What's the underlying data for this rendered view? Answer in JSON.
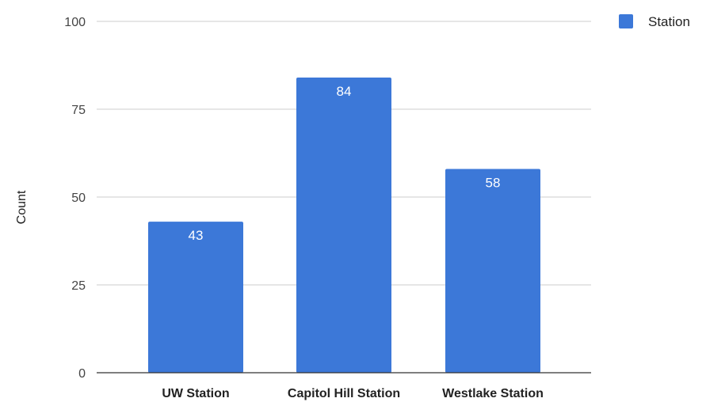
{
  "chart_data": {
    "type": "bar",
    "categories": [
      "UW Station",
      "Capitol Hill Station",
      "Westlake Station"
    ],
    "series": [
      {
        "name": "Station",
        "values": [
          43,
          84,
          58
        ]
      }
    ],
    "title": "",
    "xlabel": "",
    "ylabel": "Count",
    "ylim": [
      0,
      100
    ],
    "yticks": [
      0,
      25,
      50,
      75,
      100
    ],
    "grid": true,
    "legend_position": "top-right",
    "data_labels": true,
    "colors": {
      "bar": "#3c78d8",
      "grid": "#cccccc",
      "axis": "#333333"
    }
  }
}
